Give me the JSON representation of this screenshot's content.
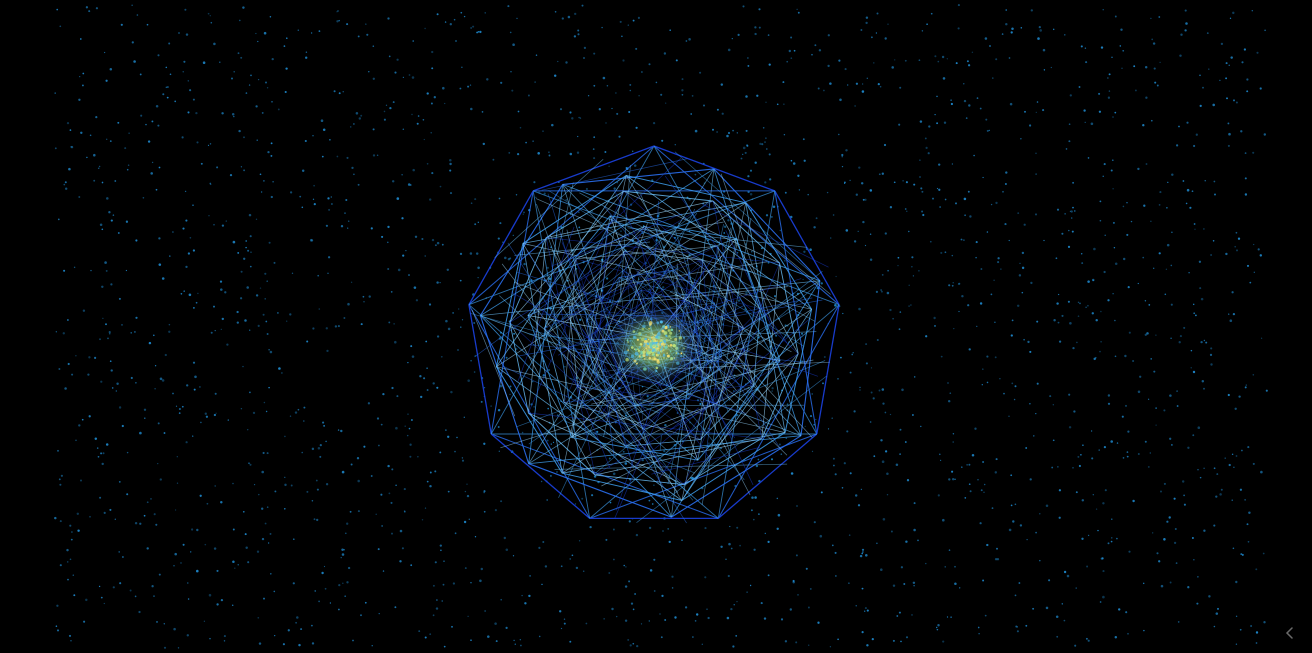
{
  "scene": {
    "background_color": "#000000",
    "particle_color": "#1f8fd6",
    "wire_colors": [
      "#1a3fd6",
      "#2a6ff0",
      "#3fa0f0",
      "#6cc4ff",
      "#9ad8ff"
    ],
    "core_colors": [
      "#f2e070",
      "#b8e07a",
      "#6fd0b0",
      "#4fb8e8"
    ]
  },
  "controls": {
    "corner_icon": "chevron-left-icon",
    "corner_icon_color": "#6a6a6a"
  }
}
